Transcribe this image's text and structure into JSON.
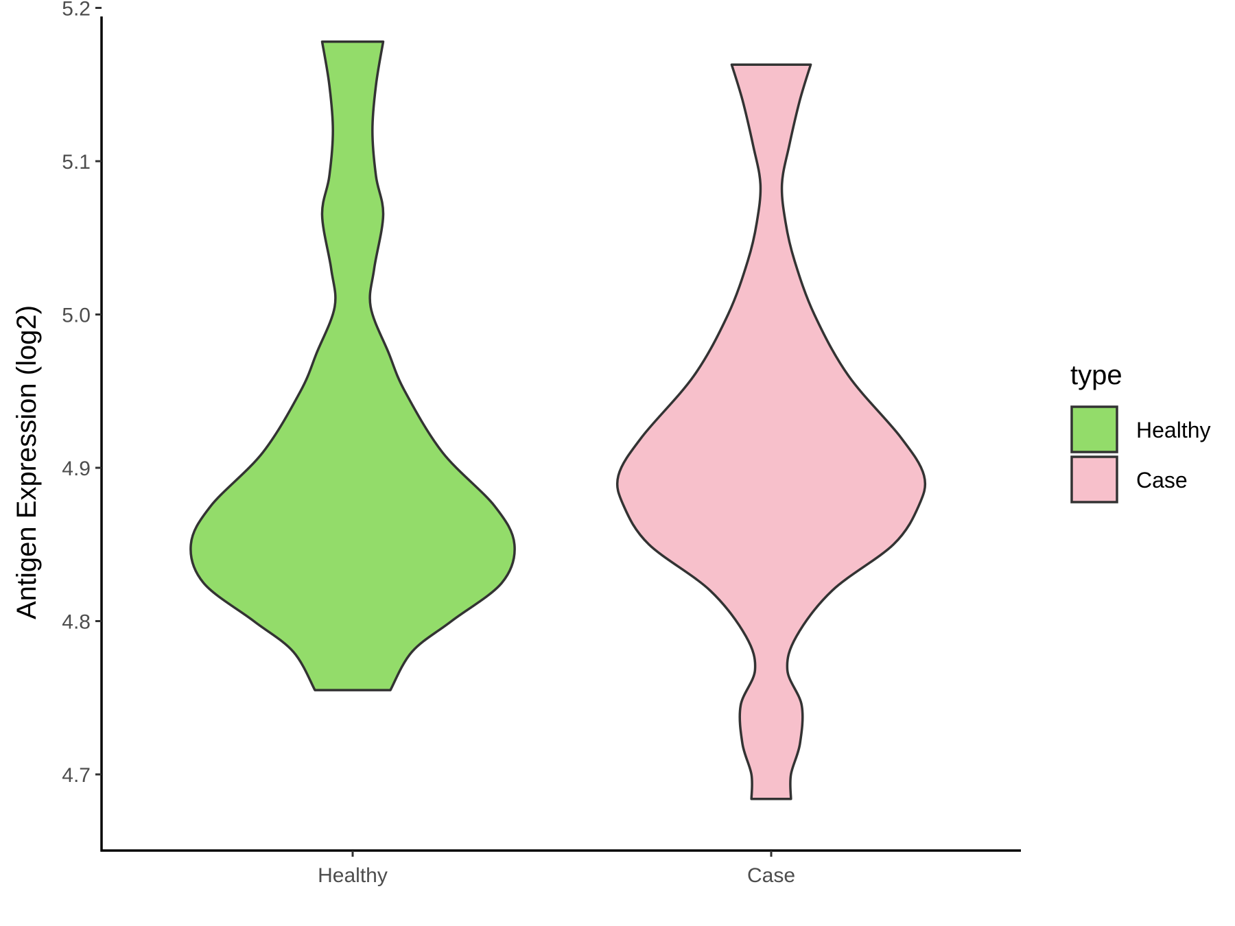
{
  "chart_data": {
    "type": "violin",
    "title": "",
    "xlabel": "",
    "ylabel": "Antigen Expression (log2)",
    "ylim": [
      4.66,
      5.21
    ],
    "yticks": [
      "4.7",
      "4.8",
      "4.9",
      "5.0",
      "5.1",
      "5.2"
    ],
    "categories": [
      "Healthy",
      "Case"
    ],
    "grid": false,
    "legend": {
      "title": "type",
      "position": "right",
      "entries": [
        {
          "label": "Healthy",
          "color": "#93dc6a"
        },
        {
          "label": "Case",
          "color": "#f7c0cb"
        }
      ]
    },
    "series": [
      {
        "name": "Healthy",
        "color": "#93dc6a",
        "min": 4.755,
        "max": 5.178,
        "density_profile": [
          [
            4.755,
            0.21
          ],
          [
            4.78,
            0.33
          ],
          [
            4.8,
            0.55
          ],
          [
            4.825,
            0.83
          ],
          [
            4.85,
            0.9
          ],
          [
            4.875,
            0.79
          ],
          [
            4.91,
            0.5
          ],
          [
            4.95,
            0.29
          ],
          [
            4.975,
            0.2
          ],
          [
            5.005,
            0.1
          ],
          [
            5.03,
            0.12
          ],
          [
            5.065,
            0.17
          ],
          [
            5.09,
            0.13
          ],
          [
            5.12,
            0.11
          ],
          [
            5.15,
            0.13
          ],
          [
            5.178,
            0.17
          ]
        ]
      },
      {
        "name": "Case",
        "color": "#f7c0cb",
        "min": 4.684,
        "max": 5.163,
        "density_profile": [
          [
            4.684,
            0.11
          ],
          [
            4.7,
            0.11
          ],
          [
            4.72,
            0.16
          ],
          [
            4.745,
            0.17
          ],
          [
            4.768,
            0.09
          ],
          [
            4.79,
            0.14
          ],
          [
            4.82,
            0.34
          ],
          [
            4.85,
            0.68
          ],
          [
            4.875,
            0.82
          ],
          [
            4.895,
            0.85
          ],
          [
            4.92,
            0.72
          ],
          [
            4.96,
            0.43
          ],
          [
            5.0,
            0.24
          ],
          [
            5.035,
            0.13
          ],
          [
            5.06,
            0.08
          ],
          [
            5.085,
            0.06
          ],
          [
            5.11,
            0.1
          ],
          [
            5.14,
            0.16
          ],
          [
            5.163,
            0.22
          ]
        ]
      }
    ]
  }
}
